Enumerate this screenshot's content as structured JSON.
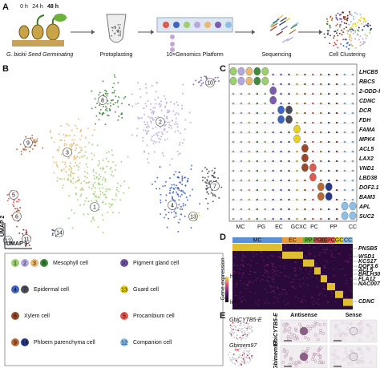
{
  "panel_a": {
    "letter": "A",
    "times": [
      "0 h",
      "24 h",
      "48 h"
    ],
    "steps": [
      "G. bickii Seed Germinating",
      "Protoplasting",
      "10×Genomics Platform",
      "Sequencing",
      "Cell Clustering"
    ]
  },
  "panel_b": {
    "letter": "B",
    "clusters": [
      "1",
      "2",
      "3",
      "4",
      "5",
      "6",
      "7",
      "8",
      "9",
      "10",
      "11",
      "12",
      "13",
      "14"
    ],
    "x_label": "UMAP 1",
    "y_label": "UMAP 2",
    "legend": [
      {
        "numbers": [
          "1",
          "2",
          "3",
          "8"
        ],
        "label": "Mesophyll cell"
      },
      {
        "numbers": [
          "10"
        ],
        "label": "Pigment gland cell"
      },
      {
        "numbers": [
          "4",
          "7"
        ],
        "label": "Epidermal cell"
      },
      {
        "numbers": [
          "13"
        ],
        "label": "Guard cell"
      },
      {
        "numbers": [
          "6"
        ],
        "label": "Xylem cell"
      },
      {
        "numbers": [
          "5"
        ],
        "label": "Procambium cell"
      },
      {
        "numbers": [
          "9",
          "14"
        ],
        "label": "Phloem parenchyma cell"
      },
      {
        "numbers": [
          "12"
        ],
        "label": "Companion cell"
      }
    ]
  },
  "panel_c": {
    "letter": "C",
    "genes": [
      "LHCB5",
      "RBCS",
      "2-ODD-fl",
      "CDNC",
      "DCR",
      "FDH",
      "FAMA",
      "MPK4",
      "ACL5",
      "LAX2",
      "VND1",
      "LBD38",
      "DOF2.1",
      "BAM3",
      "APL",
      "SUC2"
    ],
    "groups": [
      "MC",
      "PG",
      "EC",
      "GC",
      "XC",
      "PC",
      "PP",
      "CC"
    ]
  },
  "panel_d": {
    "letter": "D",
    "groups": [
      "MC",
      "EC",
      "PP",
      "PG",
      "XC",
      "PC",
      "GC",
      "CC"
    ],
    "genes": [
      "PNSB5",
      "WSD1",
      "KCS17",
      "DOF3.6",
      "ACL5",
      "BHLH30",
      "FLA12",
      "NAC007",
      "CDNC"
    ],
    "scale_label": "Gene expression",
    "high": "high",
    "low": "low"
  },
  "panel_e": {
    "letter": "E",
    "genes": [
      "GbiCYTB5-E",
      "Gbimem97"
    ],
    "columns": [
      "Antisense",
      "Sense"
    ]
  }
}
